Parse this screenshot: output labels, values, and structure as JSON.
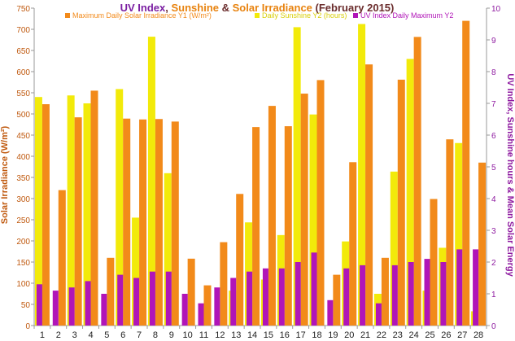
{
  "title": {
    "part1": "UV Index",
    "sep1": ", ",
    "part2": "Sunshine",
    "sep2": " & ",
    "part3": "Solar Irradiance",
    "part4": " (February 2015)"
  },
  "colors": {
    "solar": "#f28a1a",
    "sunshine": "#f2ea0a",
    "uv": "#b015b8",
    "title_purple": "#7b1fa2",
    "title_orange": "#e8830f",
    "left_axis_label": "#c05a10",
    "right_axis_label": "#8e1aa0"
  },
  "chart_data": {
    "type": "bar",
    "title": "UV Index, Sunshine & Solar Irradiance (February 2015)",
    "xlabel": "",
    "ylabel": "Solar Irradiance (W/m²)",
    "y2label": "UV Index, Sunshine hours & Mean Solar Energy",
    "ylim": [
      0,
      750
    ],
    "y2lim": [
      0,
      10
    ],
    "yticks": [
      0,
      50,
      100,
      150,
      200,
      250,
      300,
      350,
      400,
      450,
      500,
      550,
      600,
      650,
      700,
      750
    ],
    "y2ticks": [
      0,
      1,
      2,
      3,
      4,
      5,
      6,
      7,
      8,
      9,
      10
    ],
    "grid": false,
    "legend_position": "top",
    "categories": [
      "1",
      "2",
      "3",
      "4",
      "5",
      "6",
      "7",
      "8",
      "9",
      "10",
      "11",
      "12",
      "13",
      "14",
      "15",
      "16",
      "17",
      "18",
      "19",
      "20",
      "21",
      "22",
      "23",
      "24",
      "25",
      "26",
      "27",
      "28"
    ],
    "series": [
      {
        "name": "Maximum Daily Solar Irradiance Y1 (W/m²)",
        "axis": "left",
        "values": [
          523,
          320,
          492,
          555,
          160,
          489,
          487,
          488,
          482,
          158,
          95,
          197,
          311,
          469,
          519,
          471,
          548,
          580,
          120,
          386,
          617,
          160,
          581,
          682,
          299,
          440,
          720,
          385
        ]
      },
      {
        "name": "Daily Sunshine Y2 (hours)",
        "axis": "right",
        "values": [
          7.2,
          0,
          7.25,
          7.0,
          0,
          7.45,
          3.4,
          9.1,
          4.8,
          0,
          0,
          0,
          1.1,
          3.25,
          1.45,
          2.85,
          9.4,
          6.65,
          0,
          2.65,
          9.5,
          1.0,
          4.85,
          8.4,
          1.1,
          2.45,
          5.75,
          0.45
        ]
      },
      {
        "name": "UV Index Daily Maximum Y2",
        "axis": "right",
        "values": [
          1.3,
          1.1,
          1.2,
          1.4,
          1.0,
          1.6,
          1.5,
          1.7,
          1.7,
          1.0,
          0.7,
          1.2,
          1.5,
          1.7,
          1.8,
          1.8,
          2.0,
          2.3,
          0.8,
          1.8,
          1.9,
          0.7,
          1.9,
          2.0,
          2.1,
          2.0,
          2.4,
          2.4
        ]
      }
    ]
  }
}
